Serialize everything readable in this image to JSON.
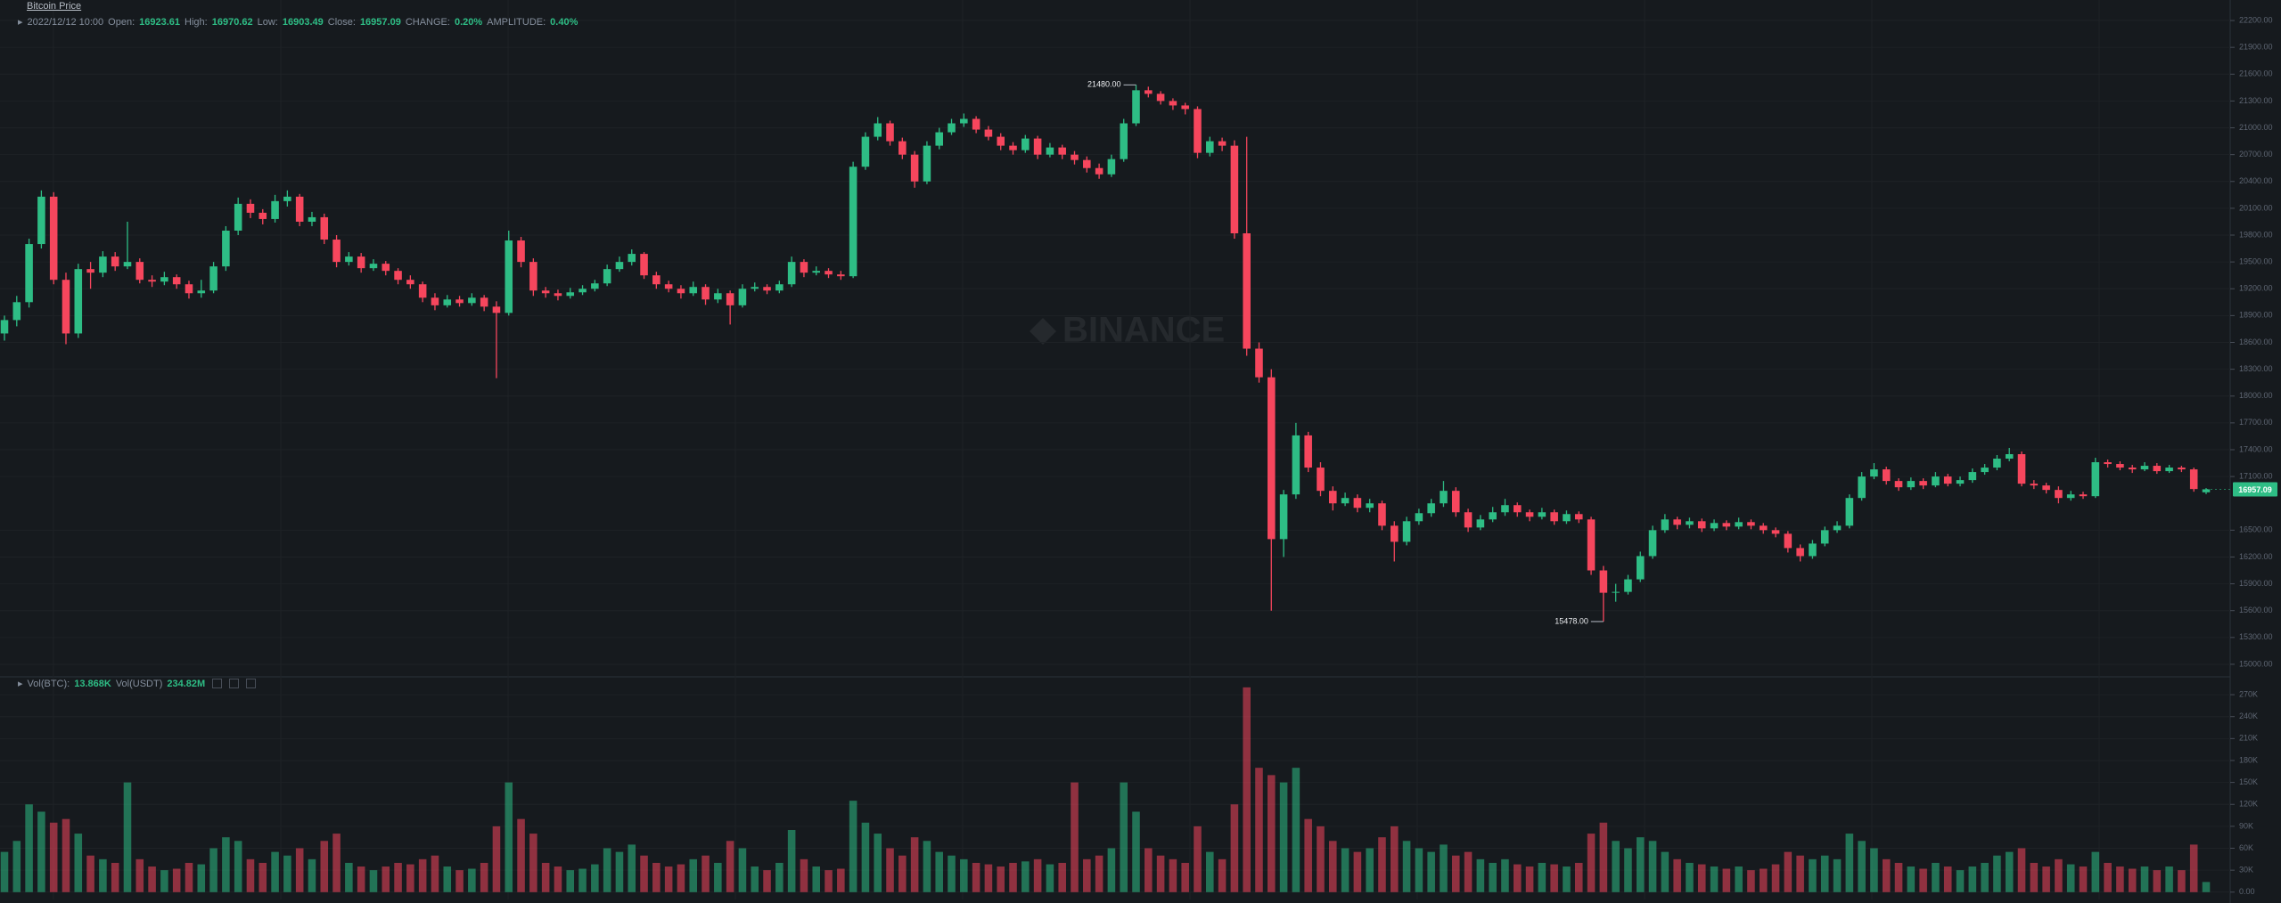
{
  "header": {
    "title": "Bitcoin Price"
  },
  "chart_data": {
    "type": "candlestick",
    "legend": {
      "date": "2022/12/12 10:00",
      "items": [
        {
          "label": "Open:",
          "value": "16923.61"
        },
        {
          "label": "High:",
          "value": "16970.62"
        },
        {
          "label": "Low:",
          "value": "16903.49"
        },
        {
          "label": "Close:",
          "value": "16957.09"
        },
        {
          "label": "CHANGE:",
          "value": "0.20%"
        },
        {
          "label": "AMPLITUDE:",
          "value": "0.40%"
        }
      ]
    },
    "watermark": "BINANCE",
    "up_color": "#2ebd85",
    "down_color": "#f6465d",
    "grid": true,
    "ylim": [
      14870,
      22300
    ],
    "yticks": [
      {
        "value": 22200,
        "label": "22200.00"
      },
      {
        "value": 21900,
        "label": "21900.00"
      },
      {
        "value": 21600,
        "label": "21600.00"
      },
      {
        "value": 21300,
        "label": "21300.00"
      },
      {
        "value": 21000,
        "label": "21000.00"
      },
      {
        "value": 20700,
        "label": "20700.00"
      },
      {
        "value": 20400,
        "label": "20400.00"
      },
      {
        "value": 20100,
        "label": "20100.00"
      },
      {
        "value": 19800,
        "label": "19800.00"
      },
      {
        "value": 19500,
        "label": "19500.00"
      },
      {
        "value": 19200,
        "label": "19200.00"
      },
      {
        "value": 18900,
        "label": "18900.00"
      },
      {
        "value": 18600,
        "label": "18600.00"
      },
      {
        "value": 18300,
        "label": "18300.00"
      },
      {
        "value": 18000,
        "label": "18000.00"
      },
      {
        "value": 17700,
        "label": "17700.00"
      },
      {
        "value": 17400,
        "label": "17400.00"
      },
      {
        "value": 17100,
        "label": "17100.00"
      },
      {
        "value": 16500,
        "label": "16500.00"
      },
      {
        "value": 16200,
        "label": "16200.00"
      },
      {
        "value": 15900,
        "label": "15900.00"
      },
      {
        "value": 15600,
        "label": "15600.00"
      },
      {
        "value": 15300,
        "label": "15300.00"
      },
      {
        "value": 15000,
        "label": "15000.00"
      }
    ],
    "last_price": 16957.09,
    "annotations": [
      {
        "label": "21480.00",
        "value": 21480,
        "at": "high"
      },
      {
        "label": "15478.00",
        "value": 15478,
        "at": "low"
      }
    ],
    "ohlc": [
      [
        18700,
        18900,
        18620,
        18850
      ],
      [
        18850,
        19120,
        18780,
        19050
      ],
      [
        19050,
        19760,
        18990,
        19700
      ],
      [
        19700,
        20300,
        19650,
        20230
      ],
      [
        20230,
        20280,
        19250,
        19300
      ],
      [
        19300,
        19380,
        18580,
        18700
      ],
      [
        18700,
        19480,
        18650,
        19420
      ],
      [
        19420,
        19500,
        19200,
        19380
      ],
      [
        19380,
        19620,
        19330,
        19560
      ],
      [
        19560,
        19610,
        19400,
        19450
      ],
      [
        19450,
        19950,
        19420,
        19500
      ],
      [
        19500,
        19540,
        19260,
        19300
      ],
      [
        19300,
        19350,
        19220,
        19280
      ],
      [
        19280,
        19390,
        19240,
        19330
      ],
      [
        19330,
        19360,
        19200,
        19250
      ],
      [
        19250,
        19290,
        19090,
        19150
      ],
      [
        19150,
        19300,
        19100,
        19180
      ],
      [
        19180,
        19500,
        19150,
        19450
      ],
      [
        19450,
        19900,
        19400,
        19850
      ],
      [
        19850,
        20220,
        19800,
        20150
      ],
      [
        20150,
        20200,
        19990,
        20050
      ],
      [
        20050,
        20090,
        19920,
        19980
      ],
      [
        19980,
        20250,
        19940,
        20180
      ],
      [
        20180,
        20300,
        20120,
        20230
      ],
      [
        20230,
        20260,
        19900,
        19950
      ],
      [
        19950,
        20060,
        19900,
        20000
      ],
      [
        20000,
        20040,
        19700,
        19750
      ],
      [
        19750,
        19800,
        19440,
        19500
      ],
      [
        19500,
        19610,
        19460,
        19560
      ],
      [
        19560,
        19600,
        19380,
        19430
      ],
      [
        19430,
        19530,
        19400,
        19480
      ],
      [
        19480,
        19510,
        19350,
        19400
      ],
      [
        19400,
        19430,
        19250,
        19300
      ],
      [
        19300,
        19350,
        19200,
        19250
      ],
      [
        19250,
        19280,
        19050,
        19100
      ],
      [
        19100,
        19150,
        18960,
        19015
      ],
      [
        19015,
        19130,
        18990,
        19080
      ],
      [
        19080,
        19120,
        19000,
        19040
      ],
      [
        19040,
        19150,
        19010,
        19100
      ],
      [
        19100,
        19130,
        18950,
        19000
      ],
      [
        19000,
        19060,
        18200,
        18930
      ],
      [
        18930,
        19850,
        18900,
        19740
      ],
      [
        19740,
        19780,
        19440,
        19500
      ],
      [
        19500,
        19540,
        19120,
        19180
      ],
      [
        19180,
        19220,
        19100,
        19150
      ],
      [
        19150,
        19190,
        19070,
        19120
      ],
      [
        19120,
        19210,
        19090,
        19160
      ],
      [
        19160,
        19240,
        19130,
        19200
      ],
      [
        19200,
        19300,
        19170,
        19260
      ],
      [
        19260,
        19470,
        19230,
        19420
      ],
      [
        19420,
        19560,
        19390,
        19500
      ],
      [
        19500,
        19640,
        19460,
        19590
      ],
      [
        19590,
        19610,
        19310,
        19350
      ],
      [
        19350,
        19390,
        19200,
        19250
      ],
      [
        19250,
        19290,
        19160,
        19200
      ],
      [
        19200,
        19240,
        19090,
        19150
      ],
      [
        19150,
        19280,
        19120,
        19220
      ],
      [
        19220,
        19250,
        19020,
        19080
      ],
      [
        19080,
        19200,
        19040,
        19150
      ],
      [
        19150,
        19180,
        18800,
        19015
      ],
      [
        19015,
        19250,
        18990,
        19200
      ],
      [
        19200,
        19270,
        19170,
        19220
      ],
      [
        19220,
        19250,
        19140,
        19180
      ],
      [
        19180,
        19290,
        19150,
        19250
      ],
      [
        19250,
        19560,
        19220,
        19500
      ],
      [
        19500,
        19530,
        19330,
        19380
      ],
      [
        19380,
        19450,
        19350,
        19400
      ],
      [
        19400,
        19430,
        19320,
        19360
      ],
      [
        19360,
        19400,
        19300,
        19340
      ],
      [
        19340,
        20620,
        19320,
        20565
      ],
      [
        20565,
        20950,
        20530,
        20900
      ],
      [
        20900,
        21120,
        20860,
        21050
      ],
      [
        21050,
        21080,
        20800,
        20850
      ],
      [
        20850,
        20890,
        20650,
        20700
      ],
      [
        20700,
        20740,
        20330,
        20400
      ],
      [
        20400,
        20850,
        20370,
        20800
      ],
      [
        20800,
        21000,
        20760,
        20950
      ],
      [
        20950,
        21100,
        20920,
        21050
      ],
      [
        21050,
        21160,
        21010,
        21100
      ],
      [
        21100,
        21130,
        20940,
        20980
      ],
      [
        20980,
        21020,
        20860,
        20900
      ],
      [
        20900,
        20940,
        20750,
        20800
      ],
      [
        20800,
        20840,
        20700,
        20750
      ],
      [
        20750,
        20920,
        20720,
        20880
      ],
      [
        20880,
        20910,
        20650,
        20700
      ],
      [
        20700,
        20830,
        20670,
        20780
      ],
      [
        20780,
        20810,
        20650,
        20700
      ],
      [
        20700,
        20740,
        20590,
        20640
      ],
      [
        20640,
        20680,
        20500,
        20550
      ],
      [
        20550,
        20600,
        20430,
        20480
      ],
      [
        20480,
        20700,
        20450,
        20650
      ],
      [
        20650,
        21100,
        20620,
        21050
      ],
      [
        21050,
        21480,
        21020,
        21420
      ],
      [
        21420,
        21460,
        21340,
        21380
      ],
      [
        21380,
        21410,
        21260,
        21300
      ],
      [
        21300,
        21330,
        21200,
        21250
      ],
      [
        21250,
        21280,
        21150,
        21210
      ],
      [
        21210,
        21240,
        20660,
        20720
      ],
      [
        20720,
        20900,
        20680,
        20850
      ],
      [
        20850,
        20890,
        20740,
        20800
      ],
      [
        20800,
        20860,
        19760,
        19820
      ],
      [
        19820,
        20900,
        18450,
        18530
      ],
      [
        18530,
        18600,
        18150,
        18210
      ],
      [
        18210,
        18300,
        15600,
        16400
      ],
      [
        16400,
        16950,
        16200,
        16900
      ],
      [
        16900,
        17700,
        16850,
        17560
      ],
      [
        17560,
        17600,
        17150,
        17200
      ],
      [
        17200,
        17260,
        16880,
        16940
      ],
      [
        16940,
        16990,
        16720,
        16800
      ],
      [
        16800,
        16920,
        16770,
        16860
      ],
      [
        16860,
        16900,
        16700,
        16750
      ],
      [
        16750,
        16850,
        16700,
        16800
      ],
      [
        16800,
        16830,
        16500,
        16550
      ],
      [
        16550,
        16600,
        16150,
        16370
      ],
      [
        16370,
        16650,
        16330,
        16600
      ],
      [
        16600,
        16740,
        16560,
        16690
      ],
      [
        16690,
        16850,
        16650,
        16800
      ],
      [
        16800,
        17050,
        16760,
        16940
      ],
      [
        16940,
        16980,
        16650,
        16700
      ],
      [
        16700,
        16740,
        16480,
        16530
      ],
      [
        16530,
        16670,
        16500,
        16620
      ],
      [
        16620,
        16760,
        16590,
        16700
      ],
      [
        16700,
        16850,
        16660,
        16780
      ],
      [
        16780,
        16810,
        16650,
        16700
      ],
      [
        16700,
        16730,
        16600,
        16650
      ],
      [
        16650,
        16750,
        16620,
        16700
      ],
      [
        16700,
        16730,
        16560,
        16600
      ],
      [
        16600,
        16720,
        16570,
        16680
      ],
      [
        16680,
        16710,
        16580,
        16620
      ],
      [
        16620,
        16650,
        16000,
        16050
      ],
      [
        16050,
        16100,
        15478,
        15800
      ],
      [
        15800,
        15900,
        15700,
        15810
      ],
      [
        15810,
        16000,
        15780,
        15950
      ],
      [
        15950,
        16260,
        15920,
        16210
      ],
      [
        16210,
        16550,
        16180,
        16500
      ],
      [
        16500,
        16680,
        16470,
        16620
      ],
      [
        16620,
        16650,
        16510,
        16560
      ],
      [
        16560,
        16640,
        16520,
        16600
      ],
      [
        16600,
        16630,
        16480,
        16520
      ],
      [
        16520,
        16620,
        16490,
        16580
      ],
      [
        16580,
        16610,
        16500,
        16540
      ],
      [
        16540,
        16640,
        16510,
        16590
      ],
      [
        16590,
        16620,
        16510,
        16550
      ],
      [
        16550,
        16580,
        16460,
        16500
      ],
      [
        16500,
        16530,
        16420,
        16460
      ],
      [
        16460,
        16490,
        16250,
        16300
      ],
      [
        16300,
        16340,
        16150,
        16210
      ],
      [
        16210,
        16390,
        16180,
        16350
      ],
      [
        16350,
        16540,
        16320,
        16500
      ],
      [
        16500,
        16600,
        16470,
        16550
      ],
      [
        16550,
        16900,
        16520,
        16860
      ],
      [
        16860,
        17150,
        16830,
        17100
      ],
      [
        17100,
        17250,
        17070,
        17180
      ],
      [
        17180,
        17210,
        17010,
        17050
      ],
      [
        17050,
        17080,
        16940,
        16980
      ],
      [
        16980,
        17090,
        16950,
        17050
      ],
      [
        17050,
        17080,
        16960,
        17000
      ],
      [
        17000,
        17150,
        16980,
        17100
      ],
      [
        17100,
        17130,
        16990,
        17020
      ],
      [
        17020,
        17100,
        16990,
        17060
      ],
      [
        17060,
        17190,
        17030,
        17150
      ],
      [
        17150,
        17240,
        17120,
        17200
      ],
      [
        17200,
        17340,
        17170,
        17300
      ],
      [
        17300,
        17420,
        17270,
        17350
      ],
      [
        17350,
        17380,
        16990,
        17020
      ],
      [
        17020,
        17060,
        16960,
        17000
      ],
      [
        17000,
        17030,
        16910,
        16950
      ],
      [
        16950,
        16990,
        16800,
        16860
      ],
      [
        16860,
        16940,
        16830,
        16900
      ],
      [
        16900,
        16930,
        16850,
        16880
      ],
      [
        16880,
        17310,
        16860,
        17260
      ],
      [
        17260,
        17290,
        17200,
        17240
      ],
      [
        17240,
        17270,
        17170,
        17200
      ],
      [
        17200,
        17230,
        17140,
        17180
      ],
      [
        17180,
        17260,
        17160,
        17220
      ],
      [
        17220,
        17250,
        17130,
        17160
      ],
      [
        17160,
        17230,
        17140,
        17200
      ],
      [
        17200,
        17220,
        17150,
        17180
      ],
      [
        17180,
        17200,
        16930,
        16960
      ],
      [
        16923.61,
        16970.62,
        16903.49,
        16957.09
      ]
    ],
    "volume_legend": [
      {
        "label": "Vol(BTC):",
        "value": "13.868K"
      },
      {
        "label": "Vol(USDT)",
        "value": "234.82M"
      }
    ],
    "volume_ylim": [
      -10000,
      292000
    ],
    "volume_yticks": [
      {
        "value": 270000,
        "label": "270K"
      },
      {
        "value": 240000,
        "label": "240K"
      },
      {
        "value": 210000,
        "label": "210K"
      },
      {
        "value": 180000,
        "label": "180K"
      },
      {
        "value": 150000,
        "label": "150K"
      },
      {
        "value": 120000,
        "label": "120K"
      },
      {
        "value": 90000,
        "label": "90K"
      },
      {
        "value": 60000,
        "label": "60K"
      },
      {
        "value": 30000,
        "label": "30K"
      },
      {
        "value": 0,
        "label": "0.00"
      }
    ],
    "volume": [
      55000,
      70000,
      120000,
      110000,
      95000,
      100000,
      80000,
      50000,
      45000,
      40000,
      150000,
      45000,
      35000,
      30000,
      32000,
      40000,
      38000,
      60000,
      75000,
      70000,
      45000,
      40000,
      55000,
      50000,
      60000,
      45000,
      70000,
      80000,
      40000,
      35000,
      30000,
      35000,
      40000,
      38000,
      45000,
      50000,
      35000,
      30000,
      32000,
      40000,
      90000,
      150000,
      100000,
      80000,
      40000,
      35000,
      30000,
      32000,
      38000,
      60000,
      55000,
      65000,
      50000,
      40000,
      35000,
      38000,
      45000,
      50000,
      40000,
      70000,
      60000,
      35000,
      30000,
      40000,
      85000,
      45000,
      35000,
      30000,
      32000,
      125000,
      95000,
      80000,
      60000,
      50000,
      75000,
      70000,
      55000,
      50000,
      45000,
      40000,
      38000,
      35000,
      40000,
      42000,
      45000,
      38000,
      40000,
      150000,
      45000,
      50000,
      60000,
      150000,
      110000,
      60000,
      50000,
      45000,
      40000,
      90000,
      55000,
      45000,
      120000,
      280000,
      170000,
      160000,
      150000,
      170000,
      100000,
      90000,
      70000,
      60000,
      55000,
      60000,
      75000,
      90000,
      70000,
      60000,
      55000,
      65000,
      50000,
      55000,
      45000,
      40000,
      45000,
      38000,
      35000,
      40000,
      38000,
      35000,
      40000,
      80000,
      95000,
      70000,
      60000,
      75000,
      70000,
      55000,
      45000,
      40000,
      38000,
      35000,
      32000,
      35000,
      30000,
      32000,
      38000,
      55000,
      50000,
      45000,
      50000,
      45000,
      80000,
      70000,
      60000,
      45000,
      40000,
      35000,
      32000,
      40000,
      35000,
      30000,
      35000,
      40000,
      50000,
      55000,
      60000,
      40000,
      35000,
      45000,
      38000,
      35000,
      55000,
      40000,
      35000,
      32000,
      35000,
      30000,
      35000,
      30000,
      65000,
      13868
    ]
  }
}
